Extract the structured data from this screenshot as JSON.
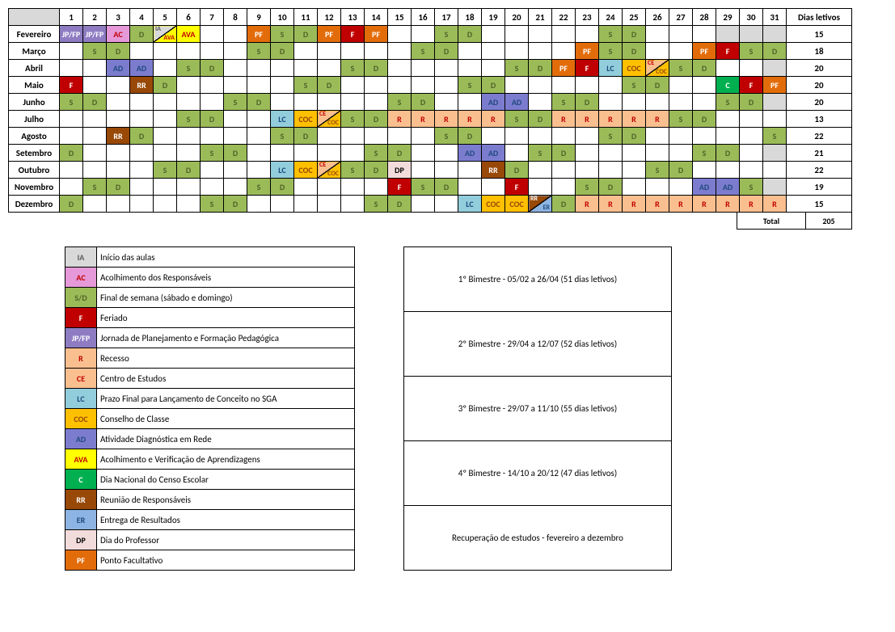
{
  "colors": {
    "gray": "#d9d9d9",
    "jpfp_bg": "#8e7cc3",
    "jpfp_fg": "#ffffff",
    "ac_bg": "#e699d9",
    "ac_fg": "#c00000",
    "d_bg": "#9bbb59",
    "d_fg": "#4f6228",
    "s_bg": "#9bbb59",
    "s_fg": "#4f6228",
    "sd_bg": "#9bbb59",
    "sd_fg": "#4f6228",
    "ia_ava_bg": "#ffffff",
    "ava_bg": "#ffff00",
    "ava_fg": "#c00000",
    "pf_bg": "#e36c0a",
    "pf_fg": "#ffffff",
    "f_bg": "#c00000",
    "f_fg": "#ffffff",
    "ad_bg": "#7c7ccf",
    "ad_fg": "#1f497d",
    "rr_bg": "#984807",
    "rr_fg": "#ffffff",
    "lc_bg": "#92cddc",
    "lc_fg": "#1f497d",
    "coc_bg": "#ffc000",
    "coc_fg": "#984807",
    "ce_bg": "#fabf8f",
    "ce_fg": "#c00000",
    "r_bg": "#fabf8f",
    "r_fg": "#c00000",
    "c_bg": "#00b050",
    "c_fg": "#ffffff",
    "er_bg": "#8db4e2",
    "er_fg": "#1f497d",
    "dp_bg": "#f2dcdb",
    "dp_fg": "#000000",
    "ia_bg": "#d9d9d9",
    "ia_fg": "#595959"
  },
  "headers": {
    "days": [
      "1",
      "2",
      "3",
      "4",
      "5",
      "6",
      "7",
      "8",
      "9",
      "10",
      "11",
      "12",
      "13",
      "14",
      "15",
      "16",
      "17",
      "18",
      "19",
      "20",
      "21",
      "22",
      "23",
      "24",
      "25",
      "26",
      "27",
      "28",
      "29",
      "30",
      "31"
    ],
    "dias_letivos": "Dias letivos",
    "total_label": "Total",
    "total_value": "205"
  },
  "months": [
    {
      "name": "Fevereiro",
      "total": "15",
      "gray": [
        29,
        30,
        31
      ],
      "cells": {
        "1": {
          "t": "JP/FP",
          "c": "jpfp"
        },
        "2": {
          "t": "JP/FP",
          "c": "jpfp"
        },
        "3": {
          "t": "AC",
          "c": "ac"
        },
        "4": {
          "t": "D",
          "c": "d"
        },
        "5": {
          "diag": true,
          "tl": "IA",
          "tlc": "#595959",
          "br": "AVA",
          "brc": "#c00000",
          "bg1": "#d9d9d9",
          "bg2": "#ffff00"
        },
        "6": {
          "t": "AVA",
          "c": "ava"
        },
        "9": {
          "t": "PF",
          "c": "pf"
        },
        "10": {
          "t": "S",
          "c": "s"
        },
        "11": {
          "t": "D",
          "c": "d"
        },
        "12": {
          "t": "PF",
          "c": "pf"
        },
        "13": {
          "t": "F",
          "c": "f"
        },
        "14": {
          "t": "PF",
          "c": "pf"
        },
        "17": {
          "t": "S",
          "c": "s"
        },
        "18": {
          "t": "D",
          "c": "d"
        },
        "24": {
          "t": "S",
          "c": "s"
        },
        "25": {
          "t": "D",
          "c": "d"
        }
      }
    },
    {
      "name": "Março",
      "total": "18",
      "gray": [],
      "cells": {
        "2": {
          "t": "S",
          "c": "s"
        },
        "3": {
          "t": "D",
          "c": "d"
        },
        "9": {
          "t": "S",
          "c": "s"
        },
        "10": {
          "t": "D",
          "c": "d"
        },
        "16": {
          "t": "S",
          "c": "s"
        },
        "17": {
          "t": "D",
          "c": "d"
        },
        "23": {
          "t": "PF",
          "c": "pf"
        },
        "24": {
          "t": "S",
          "c": "s"
        },
        "25": {
          "t": "D",
          "c": "d"
        },
        "28": {
          "t": "PF",
          "c": "pf"
        },
        "29": {
          "t": "F",
          "c": "f"
        },
        "30": {
          "t": "S",
          "c": "s"
        },
        "31": {
          "t": "D",
          "c": "d"
        }
      }
    },
    {
      "name": "Abril",
      "total": "20",
      "gray": [
        31
      ],
      "cells": {
        "3": {
          "t": "AD",
          "c": "ad"
        },
        "4": {
          "t": "AD",
          "c": "ad"
        },
        "6": {
          "t": "S",
          "c": "s"
        },
        "7": {
          "t": "D",
          "c": "d"
        },
        "13": {
          "t": "S",
          "c": "s"
        },
        "14": {
          "t": "D",
          "c": "d"
        },
        "20": {
          "t": "S",
          "c": "s"
        },
        "21": {
          "t": "D",
          "c": "d"
        },
        "22": {
          "t": "PF",
          "c": "pf"
        },
        "23": {
          "t": "F",
          "c": "f"
        },
        "24": {
          "t": "LC",
          "c": "lc"
        },
        "25": {
          "t": "COC",
          "c": "coc"
        },
        "26": {
          "diag": true,
          "tl": "CE",
          "tlc": "#c00000",
          "br": "COC",
          "brc": "#984807",
          "bg1": "#fabf8f",
          "bg2": "#ffc000"
        },
        "27": {
          "t": "S",
          "c": "s"
        },
        "28": {
          "t": "D",
          "c": "d"
        }
      }
    },
    {
      "name": "Maio",
      "total": "20",
      "gray": [],
      "cells": {
        "1": {
          "t": "F",
          "c": "f"
        },
        "4": {
          "t": "RR",
          "c": "rr"
        },
        "5": {
          "t": "D",
          "c": "d"
        },
        "11": {
          "t": "S",
          "c": "s"
        },
        "12": {
          "t": "D",
          "c": "d"
        },
        "18": {
          "t": "S",
          "c": "s"
        },
        "19": {
          "t": "D",
          "c": "d"
        },
        "25": {
          "t": "S",
          "c": "s"
        },
        "26": {
          "t": "D",
          "c": "d"
        },
        "29": {
          "t": "C",
          "c": "c"
        },
        "30": {
          "t": "F",
          "c": "f"
        },
        "31": {
          "t": "PF",
          "c": "pf"
        }
      }
    },
    {
      "name": "Junho",
      "total": "20",
      "gray": [
        31
      ],
      "cells": {
        "1": {
          "t": "S",
          "c": "s"
        },
        "2": {
          "t": "D",
          "c": "d"
        },
        "8": {
          "t": "S",
          "c": "s"
        },
        "9": {
          "t": "D",
          "c": "d"
        },
        "15": {
          "t": "S",
          "c": "s"
        },
        "16": {
          "t": "D",
          "c": "d"
        },
        "19": {
          "t": "AD",
          "c": "ad"
        },
        "20": {
          "t": "AD",
          "c": "ad"
        },
        "22": {
          "t": "S",
          "c": "s"
        },
        "23": {
          "t": "D",
          "c": "d"
        },
        "29": {
          "t": "S",
          "c": "s"
        },
        "30": {
          "t": "D",
          "c": "d"
        }
      }
    },
    {
      "name": "Julho",
      "total": "13",
      "gray": [],
      "cells": {
        "6": {
          "t": "S",
          "c": "s"
        },
        "7": {
          "t": "D",
          "c": "d"
        },
        "10": {
          "t": "LC",
          "c": "lc"
        },
        "11": {
          "t": "COC",
          "c": "coc"
        },
        "12": {
          "diag": true,
          "tl": "CE",
          "tlc": "#c00000",
          "br": "COC",
          "brc": "#984807",
          "bg1": "#fabf8f",
          "bg2": "#ffc000"
        },
        "13": {
          "t": "S",
          "c": "s"
        },
        "14": {
          "t": "D",
          "c": "d"
        },
        "15": {
          "t": "R",
          "c": "r"
        },
        "16": {
          "t": "R",
          "c": "r"
        },
        "17": {
          "t": "R",
          "c": "r"
        },
        "18": {
          "t": "R",
          "c": "r"
        },
        "19": {
          "t": "R",
          "c": "r"
        },
        "20": {
          "t": "S",
          "c": "s"
        },
        "21": {
          "t": "D",
          "c": "d"
        },
        "22": {
          "t": "R",
          "c": "r"
        },
        "23": {
          "t": "R",
          "c": "r"
        },
        "24": {
          "t": "R",
          "c": "r"
        },
        "25": {
          "t": "R",
          "c": "r"
        },
        "26": {
          "t": "R",
          "c": "r"
        },
        "27": {
          "t": "S",
          "c": "s"
        },
        "28": {
          "t": "D",
          "c": "d"
        }
      }
    },
    {
      "name": "Agosto",
      "total": "22",
      "gray": [],
      "cells": {
        "3": {
          "t": "RR",
          "c": "rr"
        },
        "4": {
          "t": "D",
          "c": "d"
        },
        "10": {
          "t": "S",
          "c": "s"
        },
        "11": {
          "t": "D",
          "c": "d"
        },
        "17": {
          "t": "S",
          "c": "s"
        },
        "18": {
          "t": "D",
          "c": "d"
        },
        "24": {
          "t": "S",
          "c": "s"
        },
        "25": {
          "t": "D",
          "c": "d"
        },
        "31": {
          "t": "S",
          "c": "s"
        }
      }
    },
    {
      "name": "Setembro",
      "total": "21",
      "gray": [
        31
      ],
      "cells": {
        "1": {
          "t": "D",
          "c": "d"
        },
        "7": {
          "t": "S",
          "c": "s"
        },
        "8": {
          "t": "D",
          "c": "d"
        },
        "14": {
          "t": "S",
          "c": "s"
        },
        "15": {
          "t": "D",
          "c": "d"
        },
        "18": {
          "t": "AD",
          "c": "ad"
        },
        "19": {
          "t": "AD",
          "c": "ad"
        },
        "21": {
          "t": "S",
          "c": "s"
        },
        "22": {
          "t": "D",
          "c": "d"
        },
        "28": {
          "t": "S",
          "c": "s"
        },
        "29": {
          "t": "D",
          "c": "d"
        }
      }
    },
    {
      "name": "Outubro",
      "total": "22",
      "gray": [],
      "cells": {
        "5": {
          "t": "S",
          "c": "s"
        },
        "6": {
          "t": "D",
          "c": "d"
        },
        "10": {
          "t": "LC",
          "c": "lc"
        },
        "11": {
          "t": "COC",
          "c": "coc"
        },
        "12": {
          "diag": true,
          "tl": "CE",
          "tlc": "#c00000",
          "br": "COC",
          "brc": "#984807",
          "bg1": "#fabf8f",
          "bg2": "#ffc000"
        },
        "13": {
          "t": "S",
          "c": "s"
        },
        "14": {
          "t": "D",
          "c": "d"
        },
        "15": {
          "t": "DP",
          "c": "dp"
        },
        "19": {
          "t": "RR",
          "c": "rr"
        },
        "20": {
          "t": "D",
          "c": "d"
        },
        "26": {
          "t": "S",
          "c": "s"
        },
        "27": {
          "t": "D",
          "c": "d"
        }
      }
    },
    {
      "name": "Novembro",
      "total": "19",
      "gray": [
        31
      ],
      "cells": {
        "2": {
          "t": "S",
          "c": "s"
        },
        "3": {
          "t": "D",
          "c": "d"
        },
        "9": {
          "t": "S",
          "c": "s"
        },
        "10": {
          "t": "D",
          "c": "d"
        },
        "15": {
          "t": "F",
          "c": "f"
        },
        "16": {
          "t": "S",
          "c": "s"
        },
        "17": {
          "t": "D",
          "c": "d"
        },
        "20": {
          "t": "F",
          "c": "f"
        },
        "23": {
          "t": "S",
          "c": "s"
        },
        "24": {
          "t": "D",
          "c": "d"
        },
        "28": {
          "t": "AD",
          "c": "ad"
        },
        "29": {
          "t": "AD",
          "c": "ad"
        },
        "30": {
          "t": "S",
          "c": "s"
        }
      }
    },
    {
      "name": "Dezembro",
      "total": "15",
      "gray": [],
      "cells": {
        "1": {
          "t": "D",
          "c": "d"
        },
        "7": {
          "t": "S",
          "c": "s"
        },
        "8": {
          "t": "D",
          "c": "d"
        },
        "14": {
          "t": "S",
          "c": "s"
        },
        "15": {
          "t": "D",
          "c": "d"
        },
        "18": {
          "t": "LC",
          "c": "lc"
        },
        "19": {
          "t": "COC",
          "c": "coc"
        },
        "20": {
          "t": "COC",
          "c": "coc"
        },
        "21": {
          "diag": true,
          "tl": "RR",
          "tlc": "#ffffff",
          "br": "ER",
          "brc": "#1f497d",
          "bg1": "#984807",
          "bg2": "#8db4e2"
        },
        "22": {
          "t": "D",
          "c": "d"
        },
        "23": {
          "t": "R",
          "c": "r"
        },
        "24": {
          "t": "R",
          "c": "r"
        },
        "25": {
          "t": "R",
          "c": "r"
        },
        "26": {
          "t": "R",
          "c": "r"
        },
        "27": {
          "t": "R",
          "c": "r"
        },
        "28": {
          "t": "R",
          "c": "r"
        },
        "29": {
          "t": "R",
          "c": "r"
        },
        "30": {
          "t": "R",
          "c": "r"
        },
        "31": {
          "t": "R",
          "c": "r"
        }
      }
    }
  ],
  "legend": [
    {
      "key": "IA",
      "c": "ia",
      "desc": "Início das aulas"
    },
    {
      "key": "AC",
      "c": "ac",
      "desc": "Acolhimento dos Responsáveis"
    },
    {
      "key": "S/D",
      "c": "sd",
      "desc": "Final de semana (sábado e domingo)"
    },
    {
      "key": "F",
      "c": "f",
      "desc": "Feriado"
    },
    {
      "key": "JP/FP",
      "c": "jpfp",
      "desc": "Jornada de Planejamento e Formação Pedagógica"
    },
    {
      "key": "R",
      "c": "r",
      "desc": "Recesso"
    },
    {
      "key": "CE",
      "c": "ce",
      "desc": "Centro de Estudos"
    },
    {
      "key": "LC",
      "c": "lc",
      "desc": "Prazo Final para Lançamento de Conceito no SGA"
    },
    {
      "key": "COC",
      "c": "coc",
      "desc": "Conselho de Classe"
    },
    {
      "key": "AD",
      "c": "ad",
      "desc": "Atividade Diagnóstica em Rede"
    },
    {
      "key": "AVA",
      "c": "ava",
      "desc": "Acolhimento e Verificação de Aprendizagens"
    },
    {
      "key": "C",
      "c": "c",
      "desc": "Dia Nacional do Censo Escolar"
    },
    {
      "key": "RR",
      "c": "rr",
      "desc": "Reunião de Responsáveis"
    },
    {
      "key": "ER",
      "c": "er",
      "desc": "Entrega de Resultados"
    },
    {
      "key": "DP",
      "c": "dp",
      "desc": "Dia do Professor"
    },
    {
      "key": "PF",
      "c": "pf",
      "desc": "Ponto Facultativo"
    }
  ],
  "bimestres": [
    "1º Bimestre - 05/02 a 26/04 (51 dias letivos)",
    "2º Bimestre - 29/04 a 12/07 (52 dias letivos)",
    "3º Bimestre - 29/07 a 11/10 (55 dias letivos)",
    "4º Bimestre - 14/10 a 20/12 (47 dias letivos)",
    "Recuperação de estudos - fevereiro a dezembro"
  ]
}
